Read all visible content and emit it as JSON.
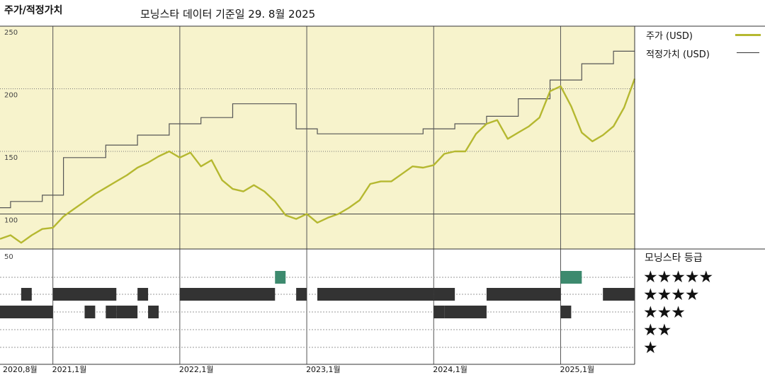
{
  "header": {
    "title": "주가/적정가치",
    "subtitle": "모닝스타 데이터 기준일 29. 8월 2025"
  },
  "legend": {
    "price_label": "주가 (USD)",
    "fair_value_label": "적정가치 (USD)"
  },
  "rating_panel": {
    "title": "모닝스타 등급",
    "rows": [
      "★★★★★",
      "★★★★",
      "★★★",
      "★★",
      "★"
    ],
    "ytick_label": "50"
  },
  "colors": {
    "plot_background": "#f7f3cc",
    "price_line": "#b5b830",
    "fair_value_line": "#555555",
    "five_star_bars": "#3d8a6e",
    "rating_bars": "#333333"
  },
  "chart_data": {
    "type": "line",
    "title": "주가/적정가치",
    "ylim": [
      72,
      250
    ],
    "yticks": [
      "100",
      "150",
      "200",
      "250"
    ],
    "ytick_values": [
      100,
      150,
      200,
      250
    ],
    "xticks": [
      "2020,8월",
      "2021,1월",
      "2022,1월",
      "2023,1월",
      "2024,1월",
      "2025,1월"
    ],
    "xtick_dates": [
      "2020-08",
      "2021-01",
      "2022-01",
      "2023-01",
      "2024-01",
      "2025-01"
    ],
    "x_range": [
      "2020-08",
      "2025-08"
    ],
    "grid": "vertical at year starts, dotted horizontal",
    "series": [
      {
        "name": "주가 (USD)",
        "points": [
          [
            "2020-08",
            80
          ],
          [
            "2020-09",
            83
          ],
          [
            "2020-10",
            77
          ],
          [
            "2020-11",
            83
          ],
          [
            "2020-12",
            88
          ],
          [
            "2021-01",
            89
          ],
          [
            "2021-02",
            98
          ],
          [
            "2021-03",
            104
          ],
          [
            "2021-04",
            110
          ],
          [
            "2021-05",
            116
          ],
          [
            "2021-06",
            121
          ],
          [
            "2021-07",
            126
          ],
          [
            "2021-08",
            131
          ],
          [
            "2021-09",
            137
          ],
          [
            "2021-10",
            141
          ],
          [
            "2021-11",
            146
          ],
          [
            "2021-12",
            150
          ],
          [
            "2022-01",
            145
          ],
          [
            "2022-02",
            149
          ],
          [
            "2022-03",
            138
          ],
          [
            "2022-04",
            143
          ],
          [
            "2022-05",
            127
          ],
          [
            "2022-06",
            120
          ],
          [
            "2022-07",
            118
          ],
          [
            "2022-08",
            123
          ],
          [
            "2022-09",
            118
          ],
          [
            "2022-10",
            110
          ],
          [
            "2022-11",
            99
          ],
          [
            "2022-12",
            96
          ],
          [
            "2023-01",
            100
          ],
          [
            "2023-02",
            93
          ],
          [
            "2023-03",
            97
          ],
          [
            "2023-04",
            100
          ],
          [
            "2023-05",
            105
          ],
          [
            "2023-06",
            111
          ],
          [
            "2023-07",
            124
          ],
          [
            "2023-08",
            126
          ],
          [
            "2023-09",
            126
          ],
          [
            "2023-10",
            132
          ],
          [
            "2023-11",
            138
          ],
          [
            "2023-12",
            137
          ],
          [
            "2024-01",
            139
          ],
          [
            "2024-02",
            148
          ],
          [
            "2024-03",
            150
          ],
          [
            "2024-04",
            150
          ],
          [
            "2024-05",
            164
          ],
          [
            "2024-06",
            172
          ],
          [
            "2024-07",
            175
          ],
          [
            "2024-08",
            160
          ],
          [
            "2024-09",
            165
          ],
          [
            "2024-10",
            170
          ],
          [
            "2024-11",
            177
          ],
          [
            "2024-12",
            198
          ],
          [
            "2025-01",
            202
          ],
          [
            "2025-02",
            186
          ],
          [
            "2025-03",
            165
          ],
          [
            "2025-04",
            158
          ],
          [
            "2025-05",
            163
          ],
          [
            "2025-06",
            170
          ],
          [
            "2025-07",
            185
          ],
          [
            "2025-08",
            208
          ]
        ]
      },
      {
        "name": "적정가치 (USD)",
        "points": [
          [
            "2020-08",
            105
          ],
          [
            "2020-09",
            110
          ],
          [
            "2020-12",
            115
          ],
          [
            "2021-02",
            145
          ],
          [
            "2021-06",
            155
          ],
          [
            "2021-09",
            163
          ],
          [
            "2021-12",
            172
          ],
          [
            "2022-03",
            177
          ],
          [
            "2022-06",
            188
          ],
          [
            "2022-09",
            188
          ],
          [
            "2022-12",
            168
          ],
          [
            "2023-02",
            164
          ],
          [
            "2023-06",
            164
          ],
          [
            "2023-09",
            164
          ],
          [
            "2023-12",
            168
          ],
          [
            "2024-03",
            172
          ],
          [
            "2024-06",
            178
          ],
          [
            "2024-09",
            192
          ],
          [
            "2024-12",
            207
          ],
          [
            "2025-03",
            220
          ],
          [
            "2025-06",
            230
          ],
          [
            "2025-08",
            230
          ]
        ]
      }
    ],
    "star_ratings": [
      {
        "label": "★★★★★",
        "periods": [
          [
            "2022-10",
            "2022-11"
          ],
          [
            "2025-01",
            "2025-03"
          ]
        ]
      },
      {
        "label": "★★★★",
        "periods": [
          [
            "2020-10",
            "2020-11"
          ],
          [
            "2021-01",
            "2021-07"
          ],
          [
            "2021-09",
            "2021-10"
          ],
          [
            "2022-01",
            "2022-10"
          ],
          [
            "2022-12",
            "2023-01"
          ],
          [
            "2023-02",
            "2024-01"
          ],
          [
            "2024-01",
            "2024-03"
          ],
          [
            "2024-06",
            "2025-01"
          ],
          [
            "2025-05",
            "2025-08"
          ]
        ]
      },
      {
        "label": "★★★",
        "periods": [
          [
            "2020-08",
            "2021-01"
          ],
          [
            "2021-04",
            "2021-05"
          ],
          [
            "2021-06",
            "2021-07"
          ],
          [
            "2021-07",
            "2021-09"
          ],
          [
            "2021-10",
            "2021-11"
          ],
          [
            "2024-01",
            "2024-02"
          ],
          [
            "2024-02",
            "2024-06"
          ],
          [
            "2025-01",
            "2025-02"
          ]
        ]
      },
      {
        "label": "★★",
        "periods": []
      },
      {
        "label": "★",
        "periods": []
      }
    ]
  }
}
